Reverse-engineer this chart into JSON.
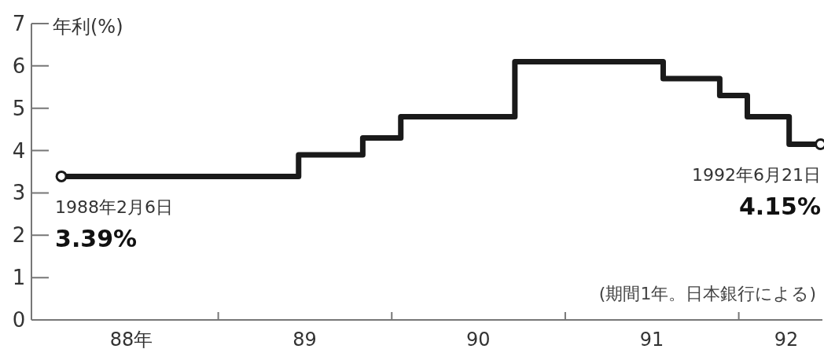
{
  "chart_data": {
    "type": "step",
    "ylabel": "年利(%)",
    "color": "#1a1a1a",
    "line_style": "solid",
    "x": [
      "1988-02-06",
      "1989-06-19",
      "1989-11-01",
      "1990-01-20",
      "1990-09-17",
      "1991-07-26",
      "1991-11-22",
      "1992-01-19",
      "1992-04-16",
      "1992-06-21"
    ],
    "values": [
      3.39,
      3.9,
      4.3,
      4.8,
      6.1,
      5.7,
      5.3,
      4.8,
      4.15,
      4.15
    ],
    "xlim": [
      "1987-12-05",
      "1992-06-25"
    ],
    "ylim": [
      0,
      7
    ],
    "yticks": [
      0,
      1,
      2,
      3,
      4,
      5,
      6,
      7
    ],
    "xticks": [
      {
        "value": "1988-07-02",
        "label": "88年"
      },
      {
        "value": "1989-01-01",
        "label": null
      },
      {
        "value": "1989-07-02",
        "label": "89"
      },
      {
        "value": "1990-01-01",
        "label": null
      },
      {
        "value": "1990-07-02",
        "label": "90"
      },
      {
        "value": "1991-01-01",
        "label": null
      },
      {
        "value": "1991-07-02",
        "label": "91"
      },
      {
        "value": "1992-01-01",
        "label": null
      },
      {
        "value": "1992-04-10",
        "label": "92"
      }
    ],
    "annotations": [
      {
        "text": "1988年2月6日",
        "x": "1988-02-06",
        "y": 3.39
      },
      {
        "text": "3.39%",
        "x": "1988-02-06",
        "y": 3.39
      },
      {
        "text": "1992年6月21日",
        "x": "1992-06-21",
        "y": 4.15
      },
      {
        "text": "4.15%",
        "x": "1992-06-21",
        "y": 4.15
      },
      "(期間1年。日本銀行による)"
    ]
  }
}
